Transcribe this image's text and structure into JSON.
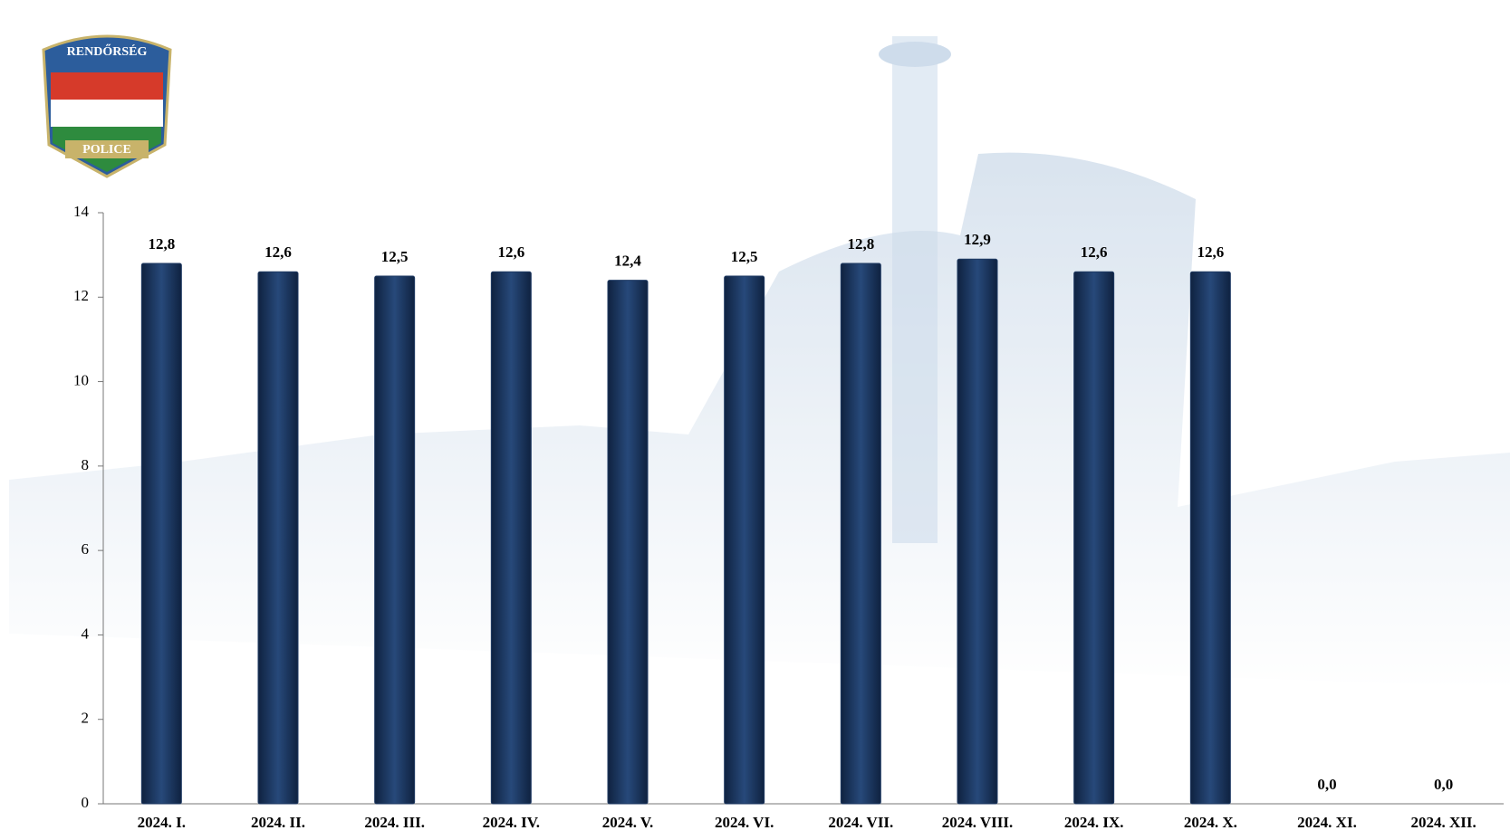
{
  "chart_data": {
    "type": "bar",
    "categories": [
      "2024. I.",
      "2024. II.",
      "2024. III.",
      "2024. IV.",
      "2024. V.",
      "2024. VI.",
      "2024. VII.",
      "2024. VIII.",
      "2024. IX.",
      "2024. X.",
      "2024. XI.",
      "2024. XII."
    ],
    "values": [
      12.8,
      12.6,
      12.5,
      12.6,
      12.4,
      12.5,
      12.8,
      12.9,
      12.6,
      12.6,
      0,
      0
    ],
    "value_labels": [
      "12,8",
      "12,6",
      "12,5",
      "12,6",
      "12,4",
      "12,5",
      "12,8",
      "12,9",
      "12,6",
      "12,6",
      "0,0",
      "0,0"
    ],
    "color": "#1f3a63",
    "ylim": [
      0,
      14
    ],
    "yticks": [
      0,
      2,
      4,
      6,
      8,
      10,
      12,
      14
    ],
    "grid": false
  },
  "logo": {
    "top_text": "RENDŐRSÉG",
    "bottom_text": "POLICE"
  }
}
